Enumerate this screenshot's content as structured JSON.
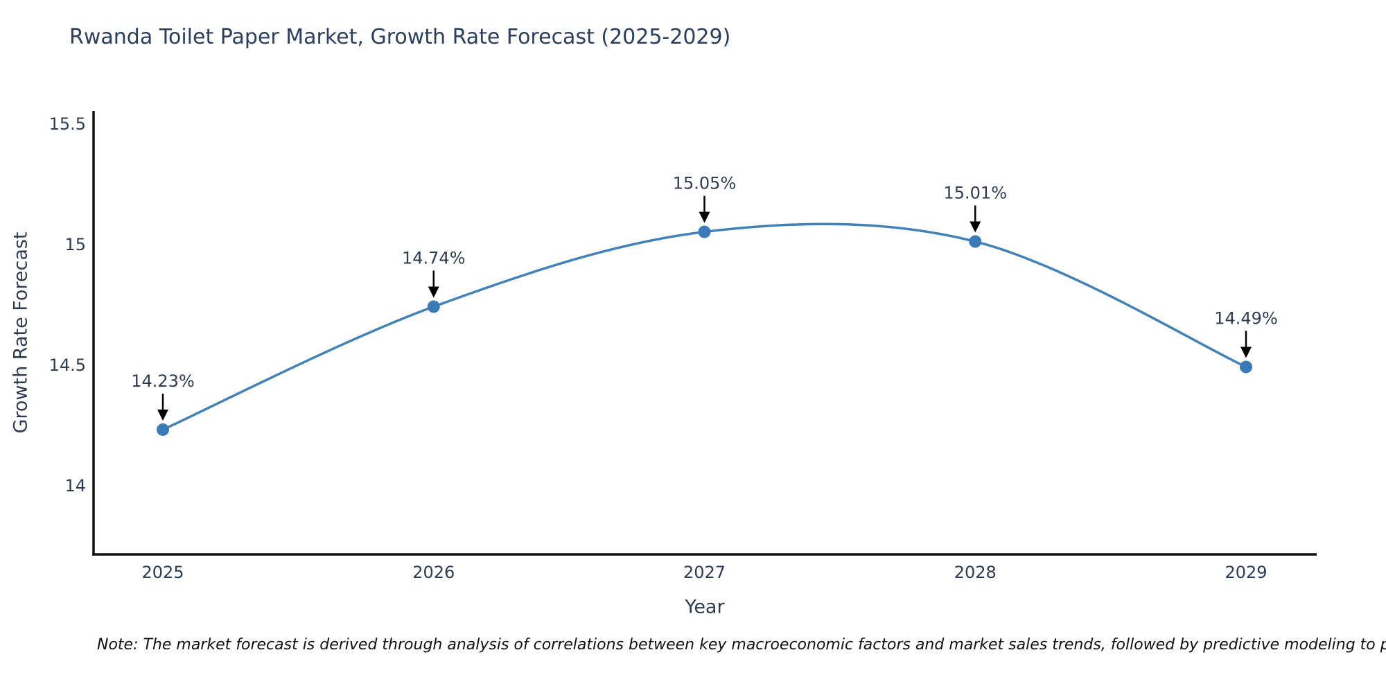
{
  "title": "Rwanda Toilet Paper Market, Growth Rate Forecast (2025-2029)",
  "note": "Note: The market forecast is derived through analysis of correlations between key macroeconomic factors and market sales trends, followed by predictive modeling to project future sal",
  "chart_data": {
    "type": "line",
    "title": "Rwanda Toilet Paper Market, Growth Rate Forecast (2025-2029)",
    "xlabel": "Year",
    "ylabel": "Growth Rate Forecast",
    "categories": [
      "2025",
      "2026",
      "2027",
      "2028",
      "2029"
    ],
    "series": [
      {
        "name": "Growth Rate Forecast",
        "values": [
          14.23,
          14.74,
          15.05,
          15.01,
          14.49
        ],
        "point_labels": [
          "14.23%",
          "14.74%",
          "15.05%",
          "15.01%",
          "14.49%"
        ]
      }
    ],
    "yticks": [
      14,
      14.5,
      15,
      15.5
    ],
    "ylim": [
      13.71,
      15.55
    ],
    "grid": false,
    "legend": "none",
    "line_shape": "spline",
    "annotation_style": "black-arrow-above-point",
    "colors": {
      "line": "#4282b8",
      "marker": "#3a7ab8",
      "arrow": "#000000",
      "axis": "#111111",
      "title_text": "#2a3f5f",
      "tick_text": "#2f3b52"
    }
  }
}
